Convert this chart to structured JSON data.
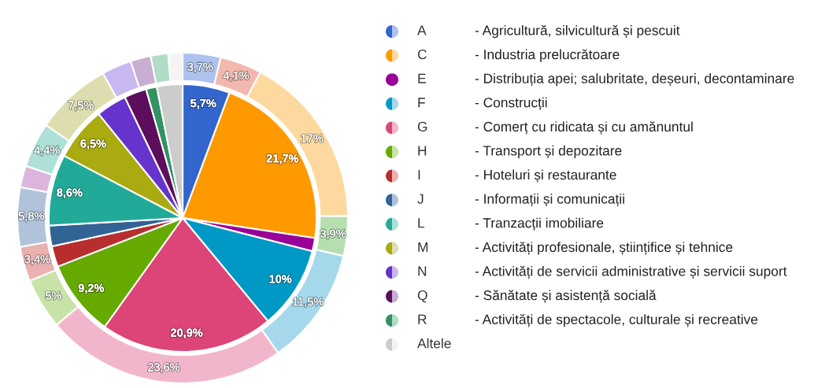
{
  "chart_data": {
    "type": "donut",
    "categories": [
      "A\t- Agricultură, silvicultură și pescuit",
      null,
      "C\t- Industria prelucrătoare",
      null,
      "E\t- Distribuția apei; salubritate, deșeuri, decontaminare",
      "F\t- Construcții",
      "G\t- Comerț cu ridicata și cu amănuntul",
      "H\t- Transport și depozitare",
      "I\t- Hoteluri și restaurante",
      "J\t- Informații și comunicații",
      null,
      "L\t- Tranzacții imobiliare",
      "M\t- Activități profesionale, științifice și tehnice",
      "N\t- Activități de servicii administrative și servicii suport",
      "Q\t- Sănătate și asistență socială",
      "R\t- Activități de spectacole, culturale și recreative",
      "Altele"
    ],
    "series": [
      {
        "type": "pie",
        "values": [
          5.7,
          null,
          21.7,
          null,
          1.6,
          10,
          20.9,
          9.2,
          2.5,
          2.5,
          null,
          8.6,
          6.5,
          3.7,
          2.7,
          1.3,
          3.1
        ],
        "colors": [
          "#3366cc",
          null,
          "#ff9900",
          null,
          "#990099",
          "#0099c6",
          "#dd4477",
          "#66aa00",
          "#b82e2e",
          "#316395",
          null,
          "#22aa99",
          "#aaaa11",
          "#6633cc",
          "#5c0e5c",
          "#329262",
          "#cccccc"
        ],
        "value_labels": [
          "5,7%",
          null,
          "21,7%",
          null,
          null,
          "10%",
          "20,9%",
          "9,2%",
          null,
          null,
          null,
          "8,6%",
          "6,5%",
          null,
          null,
          null,
          null
        ]
      },
      {
        "type": "donut",
        "values": [
          3.7,
          4.1,
          17,
          3.9,
          null,
          11.5,
          23.6,
          5,
          3.4,
          5.8,
          2.1,
          4.4,
          7.5,
          2.9,
          2.0,
          1.7,
          1.4
        ],
        "colors": [
          "#adc2ec",
          "#f2b8ae",
          "#fdd9a0",
          "#b5dfb0",
          null,
          "#a6d8ec",
          "#f2b6cc",
          "#c8e3a8",
          "#eab1b1",
          "#b1c3da",
          "#dcb5dc",
          "#ade0d8",
          "#ddddb0",
          "#c9b8ef",
          "#c8aed0",
          "#b0dcc8",
          "#f4f4f4"
        ],
        "value_labels": [
          "3,7%",
          "4,1%",
          "17%",
          "3,9%",
          null,
          "11,5%",
          "23,6%",
          "5%",
          "3,4%",
          "5,8%",
          null,
          "4,4%",
          "7,5%",
          null,
          null,
          null,
          null
        ]
      }
    ],
    "legend": "right"
  }
}
